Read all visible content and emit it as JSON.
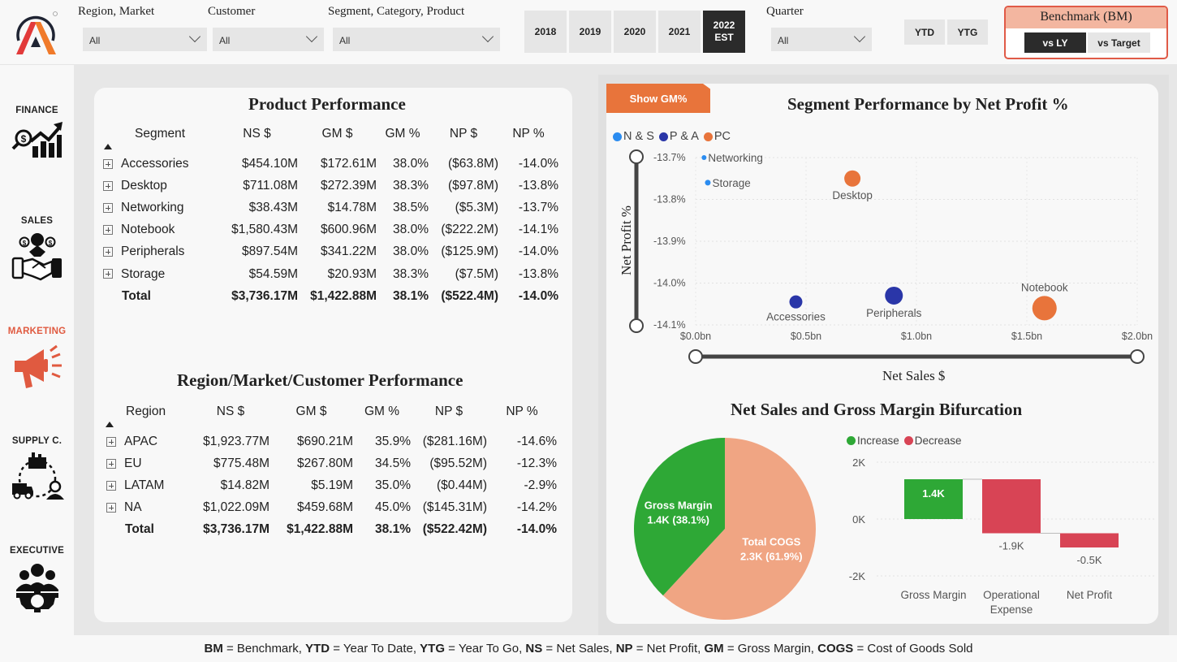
{
  "header": {
    "filters": [
      {
        "label": "Region, Market",
        "value": "All"
      },
      {
        "label": "Customer",
        "value": "All"
      },
      {
        "label": "Segment, Category, Product",
        "value": "All"
      }
    ],
    "years": [
      {
        "label": "2018",
        "active": false
      },
      {
        "label": "2019",
        "active": false
      },
      {
        "label": "2020",
        "active": false
      },
      {
        "label": "2021",
        "active": false
      },
      {
        "label": "2022",
        "sublabel": "EST",
        "active": true
      }
    ],
    "quarter": {
      "label": "Quarter",
      "value": "All"
    },
    "periods": [
      "YTD",
      "YTG"
    ],
    "benchmark": {
      "title": "Benchmark (BM)",
      "options": [
        "vs LY",
        "vs Target"
      ],
      "selected": "vs LY"
    }
  },
  "sidebar": {
    "items": [
      {
        "label": "FINANCE",
        "icon": "finance-chart-icon",
        "active": false
      },
      {
        "label": "SALES",
        "icon": "sales-handshake-icon",
        "active": false
      },
      {
        "label": "MARKETING",
        "icon": "megaphone-icon",
        "active": true
      },
      {
        "label": "SUPPLY C.",
        "icon": "supply-chain-icon",
        "active": false
      },
      {
        "label": "EXECUTIVE",
        "icon": "executive-team-icon",
        "active": false
      }
    ]
  },
  "product_performance": {
    "title": "Product Performance",
    "columns": [
      "Segment",
      "NS $",
      "GM $",
      "GM %",
      "NP $",
      "NP %"
    ],
    "rows": [
      [
        "Accessories",
        "$454.10M",
        "$172.61M",
        "38.0%",
        "($63.8M)",
        "-14.0%"
      ],
      [
        "Desktop",
        "$711.08M",
        "$272.39M",
        "38.3%",
        "($97.8M)",
        "-13.8%"
      ],
      [
        "Networking",
        "$38.43M",
        "$14.78M",
        "38.5%",
        "($5.3M)",
        "-13.7%"
      ],
      [
        "Notebook",
        "$1,580.43M",
        "$600.96M",
        "38.0%",
        "($222.2M)",
        "-14.1%"
      ],
      [
        "Peripherals",
        "$897.54M",
        "$341.22M",
        "38.0%",
        "($125.9M)",
        "-14.0%"
      ],
      [
        "Storage",
        "$54.59M",
        "$20.93M",
        "38.3%",
        "($7.5M)",
        "-13.8%"
      ]
    ],
    "total": [
      "Total",
      "$3,736.17M",
      "$1,422.88M",
      "38.1%",
      "($522.4M)",
      "-14.0%"
    ]
  },
  "region_performance": {
    "title": "Region/Market/Customer Performance",
    "columns": [
      "Region",
      "NS $",
      "GM $",
      "GM %",
      "NP $",
      "NP %"
    ],
    "rows": [
      [
        "APAC",
        "$1,923.77M",
        "$690.21M",
        "35.9%",
        "($281.16M)",
        "-14.6%"
      ],
      [
        "EU",
        "$775.48M",
        "$267.80M",
        "34.5%",
        "($95.52M)",
        "-12.3%"
      ],
      [
        "LATAM",
        "$14.82M",
        "$5.19M",
        "35.0%",
        "($0.44M)",
        "-2.9%"
      ],
      [
        "NA",
        "$1,022.09M",
        "$459.68M",
        "45.0%",
        "($145.31M)",
        "-14.2%"
      ]
    ],
    "total": [
      "Total",
      "$3,736.17M",
      "$1,422.88M",
      "38.1%",
      "($522.42M)",
      "-14.0%"
    ]
  },
  "toggle": {
    "show_gm_label": "Show GM%"
  },
  "chart_data": [
    {
      "type": "scatter",
      "title": "Segment Performance by Net Profit %",
      "xlabel": "Net Sales $",
      "ylabel": "Net Profit %",
      "xlim": [
        0,
        2.0
      ],
      "ylim": [
        -14.1,
        -13.7
      ],
      "xticks": [
        "$0.0bn",
        "$0.5bn",
        "$1.0bn",
        "$1.5bn",
        "$2.0bn"
      ],
      "yticks": [
        "-13.7%",
        "-13.8%",
        "-13.9%",
        "-14.0%",
        "-14.1%"
      ],
      "grid": true,
      "legend": {
        "position": "top-left",
        "entries": [
          {
            "name": "N & S",
            "color": "#2b8cf0"
          },
          {
            "name": "P & A",
            "color": "#2a36a8"
          },
          {
            "name": "PC",
            "color": "#e8743b"
          }
        ]
      },
      "points": [
        {
          "label": "Networking",
          "group": "N & S",
          "x": 0.038,
          "y": -13.7
        },
        {
          "label": "Storage",
          "group": "N & S",
          "x": 0.055,
          "y": -13.76
        },
        {
          "label": "Desktop",
          "group": "PC",
          "x": 0.71,
          "y": -13.75
        },
        {
          "label": "Accessories",
          "group": "P & A",
          "x": 0.454,
          "y": -14.045
        },
        {
          "label": "Peripherals",
          "group": "P & A",
          "x": 0.898,
          "y": -14.03
        },
        {
          "label": "Notebook",
          "group": "PC",
          "x": 1.58,
          "y": -14.06
        }
      ]
    },
    {
      "type": "pie",
      "title": "Net Sales and Gross Margin Bifurcation",
      "slices": [
        {
          "label": "Gross Margin",
          "value_label": "1.4K (38.1%)",
          "value": 1.4,
          "percent": 38.1,
          "color": "#2ea836"
        },
        {
          "label": "Total COGS",
          "value_label": "2.3K (61.9%)",
          "value": 2.3,
          "percent": 61.9,
          "color": "#f0a583"
        }
      ]
    },
    {
      "type": "bar",
      "subtype": "waterfall",
      "categories": [
        "Gross Margin",
        "Operational Expense",
        "Net Profit"
      ],
      "values": [
        1.4,
        -1.9,
        -0.5
      ],
      "data_labels": [
        "1.4K",
        "-1.9K",
        "-0.5K"
      ],
      "yticks": [
        "2K",
        "0K",
        "-2K"
      ],
      "ylim": [
        -2,
        2
      ],
      "grid": true,
      "legend": {
        "position": "top-left",
        "entries": [
          {
            "name": "Increase",
            "color": "#2ea836"
          },
          {
            "name": "Decrease",
            "color": "#d84455"
          }
        ]
      }
    }
  ],
  "footer": {
    "items": [
      {
        "abbr": "BM",
        "text": " = Benchmark, "
      },
      {
        "abbr": "YTD",
        "text": " = Year To Date, "
      },
      {
        "abbr": "YTG",
        "text": " = Year To Go, "
      },
      {
        "abbr": "NS",
        "text": " = Net Sales, "
      },
      {
        "abbr": "NP",
        "text": " = Net Profit, "
      },
      {
        "abbr": "GM",
        "text": " = Gross Margin, "
      },
      {
        "abbr": "COGS",
        "text": " = Cost of Goods Sold"
      }
    ]
  }
}
